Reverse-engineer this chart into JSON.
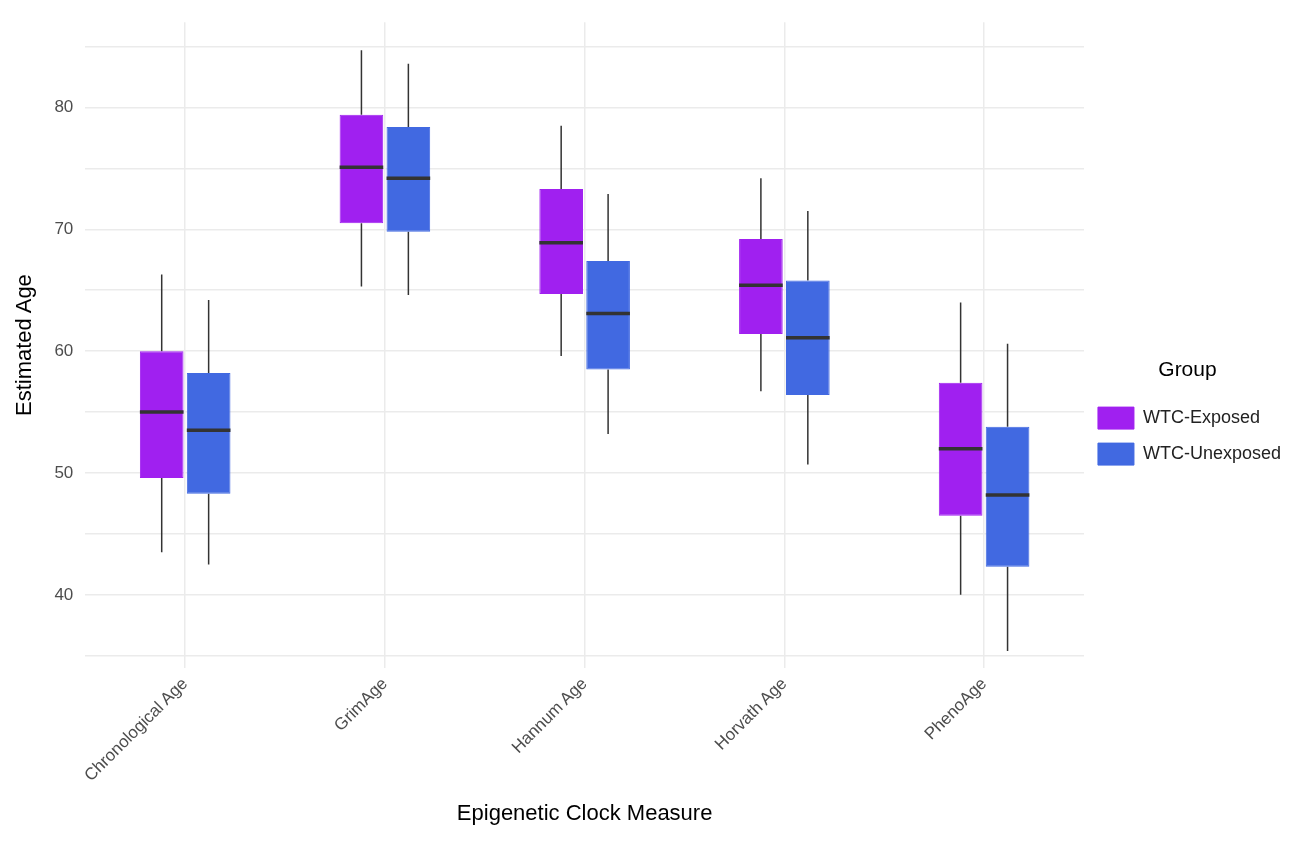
{
  "chart_data": {
    "type": "box",
    "xlabel": "Epigenetic Clock Measure",
    "ylabel": "Estimated Age",
    "legend_title": "Group",
    "legend": "right",
    "grid": true,
    "categories": [
      "Chronological Age",
      "GrimAge",
      "Hannum Age",
      "Horvath Age",
      "PhenoAge"
    ],
    "ylim": [
      34,
      87
    ],
    "yticks": [
      {
        "value": 35,
        "label": null
      },
      40,
      {
        "value": 45,
        "label": null
      },
      50,
      {
        "value": 55,
        "label": null
      },
      60,
      {
        "value": 65,
        "label": null
      },
      70,
      {
        "value": 75,
        "label": null
      },
      80,
      {
        "value": 85,
        "label": null
      }
    ],
    "series": [
      {
        "name": "WTC-Exposed",
        "color": "#a020f0",
        "boxes": [
          {
            "low": 43.5,
            "q1": 49.6,
            "median": 55,
            "q3": 60,
            "high": 66.3
          },
          {
            "low": 65.3,
            "q1": 70.5,
            "median": 75.1,
            "q3": 79.4,
            "high": 84.7
          },
          {
            "low": 59.6,
            "q1": 64.7,
            "median": 68.9,
            "q3": 73.3,
            "high": 78.5
          },
          {
            "low": 56.7,
            "q1": 61.4,
            "median": 65.4,
            "q3": 69.2,
            "high": 74.2
          },
          {
            "low": 40,
            "q1": 46.5,
            "median": 52,
            "q3": 57.4,
            "high": 64
          }
        ]
      },
      {
        "name": "WTC-Unexposed",
        "color": "#4169e1",
        "boxes": [
          {
            "low": 42.5,
            "q1": 48.3,
            "median": 53.5,
            "q3": 58.2,
            "high": 64.2
          },
          {
            "low": 64.6,
            "q1": 69.8,
            "median": 74.2,
            "q3": 78.4,
            "high": 83.6
          },
          {
            "low": 53.2,
            "q1": 58.5,
            "median": 63.1,
            "q3": 67.4,
            "high": 72.9
          },
          {
            "low": 50.7,
            "q1": 56.4,
            "median": 61.1,
            "q3": 65.8,
            "high": 71.5
          },
          {
            "low": 35.4,
            "q1": 42.3,
            "median": 48.2,
            "q3": 53.8,
            "high": 60.6
          }
        ]
      }
    ]
  }
}
